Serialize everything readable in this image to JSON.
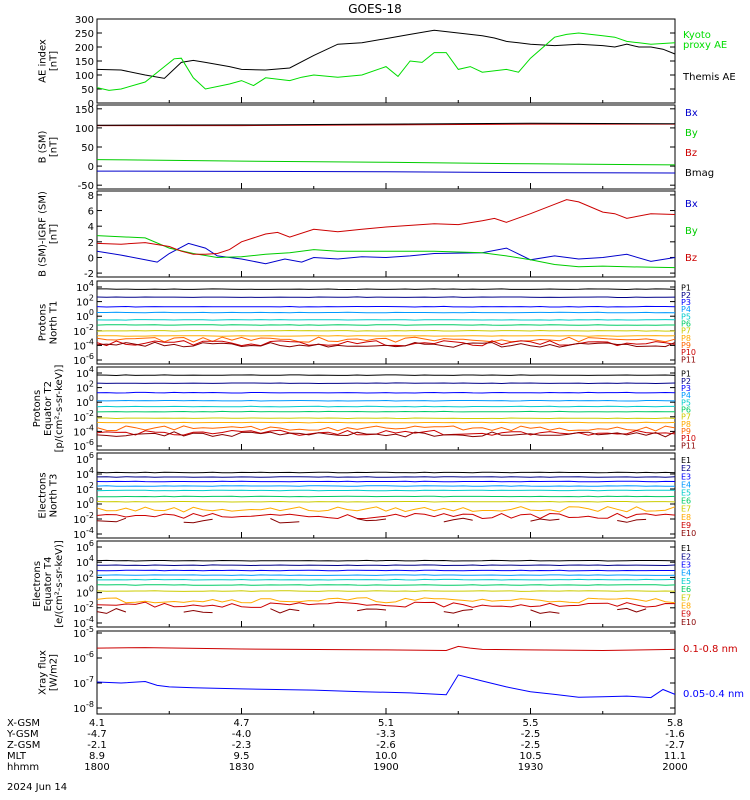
{
  "title": "GOES-18",
  "date_label": "2024 Jun 14",
  "colors": {
    "axis": "#000000",
    "kyoto": "#00dd00",
    "themis": "#000000",
    "bx": "#0000cc",
    "by": "#00cc00",
    "bz": "#cc0000",
    "bmag": "#000000",
    "xray_long": "#cc0000",
    "xray_short": "#0000ff"
  },
  "panels": [
    {
      "id": "ae",
      "ylabel": [
        "AE index",
        "[nT]"
      ],
      "ticks": [
        "300",
        "250",
        "200",
        "150",
        "100",
        "50",
        "0"
      ],
      "legend": [
        {
          "text": "Kyoto",
          "color": "#00dd00"
        },
        {
          "text": "proxy AE",
          "color": "#00dd00"
        },
        {
          "text": "Themis AE",
          "color": "#000000"
        }
      ]
    },
    {
      "id": "bsm",
      "ylabel": [
        "B (SM)",
        "[nT]"
      ],
      "ticks": [
        "150",
        "100",
        "50",
        "0",
        "-50"
      ],
      "legend": [
        {
          "text": "Bx",
          "color": "#0000cc"
        },
        {
          "text": "By",
          "color": "#00cc00"
        },
        {
          "text": "Bz",
          "color": "#cc0000"
        },
        {
          "text": "Bmag",
          "color": "#000000"
        }
      ]
    },
    {
      "id": "bdiff",
      "ylabel": [
        "B (SM)-IGRF (SM)",
        "[nT]"
      ],
      "ticks": [
        "8",
        "6",
        "4",
        "2",
        "0",
        "-2"
      ],
      "legend": [
        {
          "text": "Bx",
          "color": "#0000cc"
        },
        {
          "text": "By",
          "color": "#00cc00"
        },
        {
          "text": "Bz",
          "color": "#cc0000"
        }
      ]
    },
    {
      "id": "pn",
      "ylabel": [
        "Protons",
        "North T1"
      ],
      "ticks": [
        "10^4",
        "10^2",
        "10^0",
        "10^-2",
        "10^-4",
        "10^-6"
      ],
      "legend": [
        {
          "text": "P1",
          "color": "#000000"
        },
        {
          "text": "P2",
          "color": "#000088"
        },
        {
          "text": "P3",
          "color": "#0000ff"
        },
        {
          "text": "P4",
          "color": "#0099ff"
        },
        {
          "text": "P5",
          "color": "#00cccc"
        },
        {
          "text": "P6",
          "color": "#00cc66"
        },
        {
          "text": "P7",
          "color": "#cccc00"
        },
        {
          "text": "P8",
          "color": "#ffaa00"
        },
        {
          "text": "P9",
          "color": "#ff6600"
        },
        {
          "text": "P10",
          "color": "#cc0000"
        },
        {
          "text": "P11",
          "color": "#880000"
        }
      ]
    },
    {
      "id": "pe",
      "ylabel": [
        "Protons",
        "Equator T2",
        "[p/(cm²-s-sr-keV)]"
      ],
      "ticks": [
        "10^4",
        "10^2",
        "10^0",
        "10^-2",
        "10^-4",
        "10^-6"
      ],
      "legend": [
        {
          "text": "P1",
          "color": "#000000"
        },
        {
          "text": "P2",
          "color": "#000088"
        },
        {
          "text": "P3",
          "color": "#0000ff"
        },
        {
          "text": "P4",
          "color": "#0099ff"
        },
        {
          "text": "P5",
          "color": "#00cccc"
        },
        {
          "text": "P6",
          "color": "#00cc66"
        },
        {
          "text": "P7",
          "color": "#cccc00"
        },
        {
          "text": "P8",
          "color": "#ffaa00"
        },
        {
          "text": "P9",
          "color": "#ff6600"
        },
        {
          "text": "P10",
          "color": "#cc0000"
        },
        {
          "text": "P11",
          "color": "#880000"
        }
      ]
    },
    {
      "id": "en",
      "ylabel": [
        "Electrons",
        "North T3"
      ],
      "ticks": [
        "10^6",
        "10^4",
        "10^2",
        "10^0",
        "10^-2",
        "10^-4"
      ],
      "legend": [
        {
          "text": "E1",
          "color": "#000000"
        },
        {
          "text": "E2",
          "color": "#000088"
        },
        {
          "text": "E3",
          "color": "#0000ff"
        },
        {
          "text": "E4",
          "color": "#0099ff"
        },
        {
          "text": "E5",
          "color": "#00cccc"
        },
        {
          "text": "E6",
          "color": "#00cc66"
        },
        {
          "text": "E7",
          "color": "#cccc00"
        },
        {
          "text": "E8",
          "color": "#ffaa00"
        },
        {
          "text": "E9",
          "color": "#cc0000"
        },
        {
          "text": "E10",
          "color": "#880000"
        }
      ]
    },
    {
      "id": "ee",
      "ylabel": [
        "Electrons",
        "Equator T4",
        "[e/(cm²-s-sr-keV)]"
      ],
      "ticks": [
        "10^6",
        "10^4",
        "10^2",
        "10^0",
        "10^-2",
        "10^-4"
      ],
      "legend": [
        {
          "text": "E1",
          "color": "#000000"
        },
        {
          "text": "E2",
          "color": "#000088"
        },
        {
          "text": "E3",
          "color": "#0000ff"
        },
        {
          "text": "E4",
          "color": "#0099ff"
        },
        {
          "text": "E5",
          "color": "#00cccc"
        },
        {
          "text": "E6",
          "color": "#00cc66"
        },
        {
          "text": "E7",
          "color": "#cccc00"
        },
        {
          "text": "E8",
          "color": "#ffaa00"
        },
        {
          "text": "E9",
          "color": "#cc0000"
        },
        {
          "text": "E10",
          "color": "#880000"
        }
      ]
    },
    {
      "id": "xray",
      "ylabel": [
        "Xray flux",
        "[W/m2]"
      ],
      "ticks": [
        "10^-5",
        "10^-6",
        "10^-7",
        "10^-8"
      ],
      "legend": [
        {
          "text": "0.1-0.8 nm",
          "color": "#cc0000"
        },
        {
          "text": "0.05-0.4 nm",
          "color": "#0000ff"
        }
      ]
    }
  ],
  "xaxis": {
    "row_labels": [
      "X-GSM",
      "Y-GSM",
      "Z-GSM",
      "MLT",
      "hhmm"
    ],
    "columns": [
      [
        "4.1",
        "-4.7",
        "-2.1",
        "8.9",
        "1800"
      ],
      [
        "4.7",
        "-4.0",
        "-2.3",
        "9.5",
        "1830"
      ],
      [
        "5.1",
        "-3.3",
        "-2.6",
        "10.0",
        "1900"
      ],
      [
        "5.5",
        "-2.5",
        "-2.5",
        "10.5",
        "1930"
      ],
      [
        "5.8",
        "-1.6",
        "-2.7",
        "11.1",
        "2000"
      ]
    ]
  },
  "chart_data": [
    {
      "type": "line",
      "panel": "ae",
      "x_unit": "minutes after 1800 UT",
      "ylim": [
        0,
        300
      ],
      "series": [
        {
          "name": "Themis AE",
          "x": [
            0,
            10,
            20,
            28,
            35,
            40,
            45,
            55,
            60,
            70,
            80,
            90,
            100,
            110,
            120,
            130,
            140,
            150,
            160,
            165,
            170,
            175,
            180,
            190,
            200,
            210,
            215,
            220,
            225,
            230,
            235,
            240
          ],
          "y": [
            120,
            118,
            100,
            88,
            145,
            152,
            145,
            130,
            120,
            118,
            125,
            170,
            210,
            215,
            230,
            245,
            260,
            250,
            240,
            232,
            220,
            215,
            210,
            205,
            210,
            205,
            200,
            210,
            200,
            200,
            192,
            175
          ]
        },
        {
          "name": "Kyoto proxy AE",
          "x": [
            0,
            5,
            10,
            20,
            28,
            32,
            35,
            40,
            45,
            55,
            60,
            65,
            70,
            80,
            85,
            90,
            100,
            110,
            120,
            125,
            130,
            135,
            140,
            145,
            150,
            155,
            160,
            170,
            175,
            180,
            190,
            195,
            200,
            210,
            215,
            220,
            225,
            230,
            240
          ],
          "y": [
            55,
            45,
            50,
            75,
            130,
            158,
            160,
            90,
            50,
            68,
            80,
            62,
            90,
            80,
            92,
            100,
            92,
            100,
            130,
            95,
            150,
            145,
            180,
            180,
            120,
            130,
            110,
            120,
            110,
            160,
            235,
            245,
            250,
            240,
            235,
            220,
            215,
            210,
            215
          ]
        }
      ]
    },
    {
      "type": "line",
      "panel": "bsm",
      "x_unit": "minutes after 1800 UT",
      "ylim": [
        -60,
        160
      ],
      "series": [
        {
          "name": "Bx",
          "x": [
            0,
            60,
            120,
            180,
            240
          ],
          "y": [
            -13,
            -14,
            -15,
            -17,
            -18
          ]
        },
        {
          "name": "By",
          "x": [
            0,
            60,
            120,
            180,
            240
          ],
          "y": [
            17,
            13,
            10,
            6,
            3
          ]
        },
        {
          "name": "Bz",
          "x": [
            0,
            60,
            120,
            180,
            240
          ],
          "y": [
            106,
            106,
            108,
            110,
            110
          ]
        },
        {
          "name": "Bmag",
          "x": [
            0,
            60,
            120,
            180,
            240
          ],
          "y": [
            107,
            108,
            110,
            112,
            111
          ]
        }
      ]
    },
    {
      "type": "line",
      "panel": "bdiff",
      "x_unit": "minutes after 1800 UT",
      "ylim": [
        -2.5,
        8.5
      ],
      "series": [
        {
          "name": "Bx",
          "x": [
            0,
            10,
            20,
            25,
            30,
            38,
            45,
            50,
            60,
            70,
            78,
            85,
            90,
            100,
            110,
            120,
            130,
            140,
            160,
            170,
            180,
            190,
            200,
            210,
            220,
            230,
            240
          ],
          "y": [
            0.8,
            0.3,
            -0.3,
            -0.6,
            0.5,
            1.8,
            1.2,
            0.2,
            -0.2,
            -0.8,
            -0.2,
            -0.6,
            0,
            -0.2,
            0.1,
            0,
            0.2,
            0.5,
            0.6,
            1.2,
            -0.3,
            0.2,
            -0.2,
            0,
            0.4,
            -0.5,
            0
          ]
        },
        {
          "name": "By",
          "x": [
            0,
            20,
            30,
            40,
            50,
            60,
            70,
            80,
            90,
            100,
            120,
            140,
            160,
            170,
            180,
            190,
            200,
            210,
            220,
            240
          ],
          "y": [
            2.8,
            2.5,
            1.2,
            0.5,
            0,
            0.1,
            0.4,
            0.6,
            1.0,
            0.8,
            0.8,
            0.8,
            0.6,
            0.2,
            -0.3,
            -0.9,
            -1.2,
            -1.1,
            -1.2,
            -1.3
          ]
        },
        {
          "name": "Bz",
          "x": [
            0,
            10,
            20,
            30,
            35,
            40,
            45,
            50,
            55,
            60,
            70,
            75,
            80,
            90,
            100,
            110,
            120,
            130,
            140,
            150,
            160,
            165,
            170,
            180,
            190,
            195,
            200,
            210,
            215,
            220,
            230,
            240
          ],
          "y": [
            1.8,
            1.7,
            1.9,
            1.4,
            0.8,
            0.4,
            0.4,
            0.5,
            1.0,
            2.0,
            3.0,
            3.2,
            2.6,
            3.6,
            3.3,
            3.6,
            3.9,
            4.1,
            4.3,
            4.2,
            4.7,
            5.0,
            4.5,
            5.6,
            6.8,
            7.4,
            7.1,
            5.8,
            5.6,
            5.0,
            5.6,
            5.5
          ]
        }
      ]
    },
    {
      "type": "line",
      "panel": "pn",
      "yscale": "log",
      "ylim_exp": [
        -6,
        4
      ],
      "series_levels_exp": {
        "P1": 3.7,
        "P2": 2.6,
        "P3": 1.3,
        "P4": 0.5,
        "P5": -0.5,
        "P6": -1.2,
        "P7": -2.0,
        "P8": -2.7,
        "P9": -3.2,
        "P10": -3.7,
        "P11": -3.9
      }
    },
    {
      "type": "line",
      "panel": "pe",
      "yscale": "log",
      "ylim_exp": [
        -6,
        4
      ],
      "series_levels_exp": {
        "P1": 3.7,
        "P2": 2.6,
        "P3": 1.3,
        "P4": 0.2,
        "P5": -0.6,
        "P6": -1.3,
        "P7": -2.2,
        "P8": -2.8,
        "P9": -3.6,
        "P10": -4.2,
        "P11": -4.4
      }
    },
    {
      "type": "line",
      "panel": "en",
      "yscale": "log",
      "ylim_exp": [
        -4,
        6
      ],
      "series_levels_exp": {
        "E1": 4.2,
        "E2": 3.6,
        "E3": 3.0,
        "E4": 2.4,
        "E5": 1.8,
        "E6": 1.0,
        "E7": 0.3,
        "E8": -0.7,
        "E9": -1.6,
        "E10": -2.2
      }
    },
    {
      "type": "line",
      "panel": "ee",
      "yscale": "log",
      "ylim_exp": [
        -4,
        6
      ],
      "series_levels_exp": {
        "E1": 4.2,
        "E2": 3.6,
        "E3": 2.9,
        "E4": 2.3,
        "E5": 1.7,
        "E6": 1.0,
        "E7": 0.2,
        "E8": -1.0,
        "E9": -1.6,
        "E10": -2.4
      }
    },
    {
      "type": "line",
      "panel": "xray",
      "yscale": "log",
      "ylim": [
        1e-08,
        1e-05
      ],
      "series": [
        {
          "name": "0.1-0.8 nm",
          "x": [
            0,
            20,
            60,
            120,
            145,
            150,
            155,
            160,
            180,
            210,
            240
          ],
          "y": [
            2.5e-06,
            2.6e-06,
            2.3e-06,
            2.1e-06,
            2e-06,
            2.9e-06,
            2.5e-06,
            2.2e-06,
            2.1e-06,
            2e-06,
            2.2e-06
          ]
        },
        {
          "name": "0.05-0.4 nm",
          "x": [
            0,
            10,
            20,
            25,
            30,
            40,
            60,
            90,
            110,
            130,
            140,
            145,
            150,
            160,
            170,
            180,
            190,
            200,
            210,
            220,
            230,
            235,
            240
          ],
          "y": [
            1.1e-07,
            1e-07,
            1.15e-07,
            8e-08,
            7e-08,
            6.5e-08,
            5.8e-08,
            5.2e-08,
            4.5e-08,
            4e-08,
            3.6e-08,
            3.4e-08,
            2.1e-07,
            1.2e-07,
            7e-08,
            4.5e-08,
            3.5e-08,
            2.7e-08,
            2.8e-08,
            3e-08,
            2.6e-08,
            5.5e-08,
            3.5e-08
          ]
        }
      ]
    }
  ]
}
